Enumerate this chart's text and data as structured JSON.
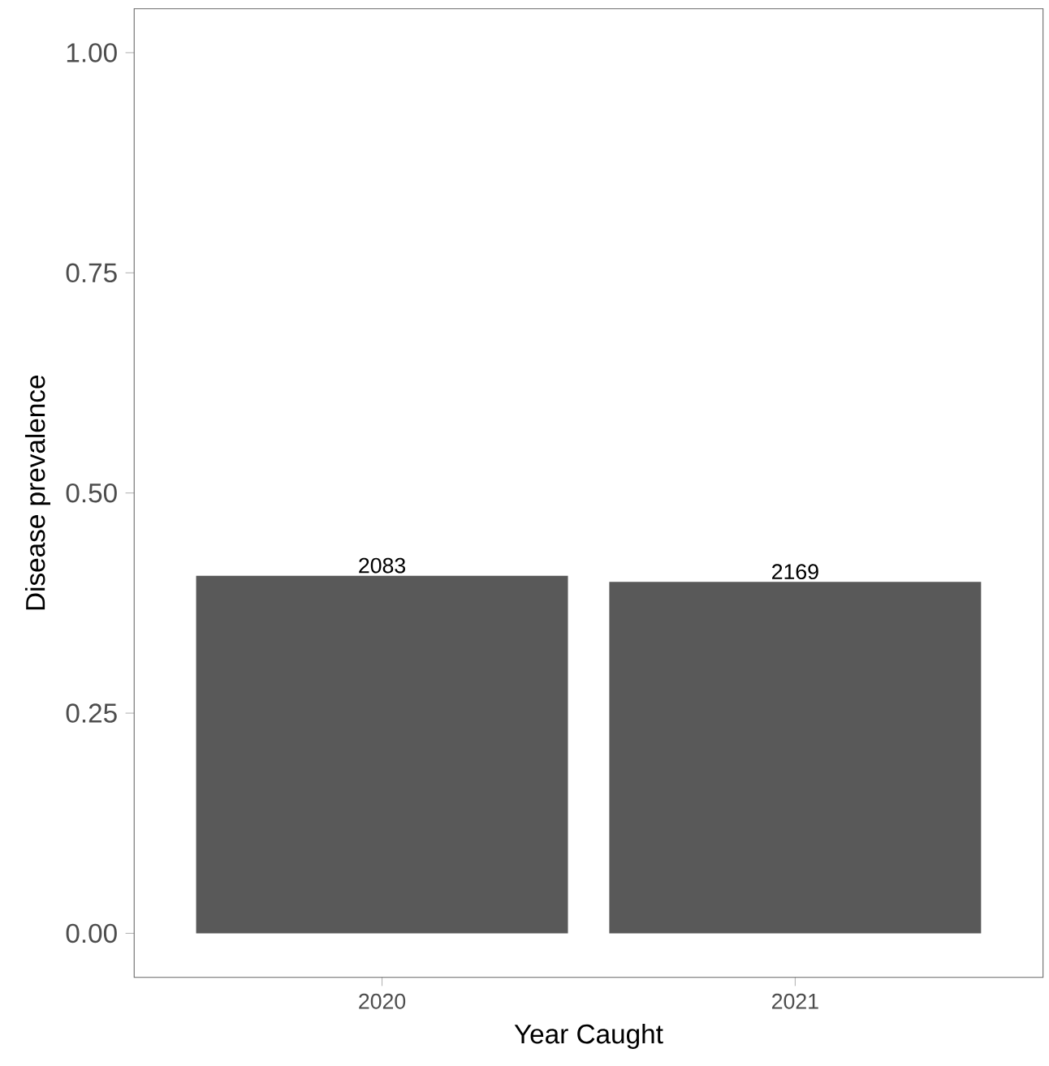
{
  "chart_data": {
    "type": "bar",
    "xlabel": "Year Caught",
    "ylabel": "Disease prevalence",
    "categories": [
      "2020",
      "2021"
    ],
    "values": [
      0.406,
      0.399
    ],
    "color": "#595959",
    "ylim": [
      -0.05,
      1.05
    ],
    "yticks": [
      {
        "value": 0,
        "label": "0.00"
      },
      {
        "value": 0.25,
        "label": "0.25"
      },
      {
        "value": 0.5,
        "label": "0.50"
      },
      {
        "value": 0.75,
        "label": "0.75"
      },
      {
        "value": 1,
        "label": "1.00"
      }
    ],
    "annotations": [
      {
        "text": "2083",
        "x": "2020",
        "y": 0.406
      },
      {
        "text": "2169",
        "x": "2021",
        "y": 0.399
      }
    ]
  }
}
